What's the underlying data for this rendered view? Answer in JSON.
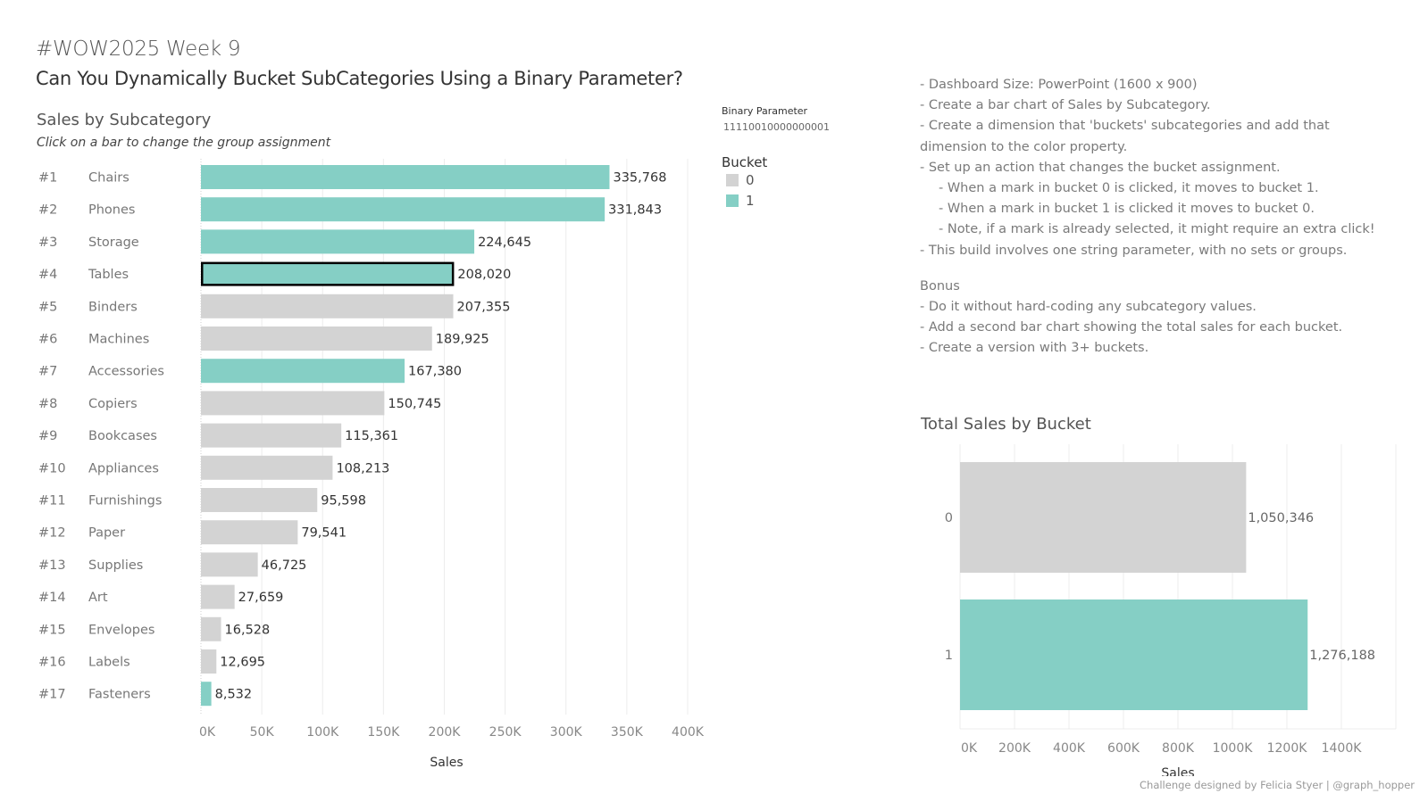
{
  "header": {
    "line1": "#WOW2025 Week 9",
    "title": "Can You Dynamically Bucket SubCategories Using a Binary Parameter?"
  },
  "parameter": {
    "label": "Binary Parameter",
    "value": "11110010000000001"
  },
  "legend": {
    "title": "Bucket",
    "items": [
      {
        "label": "0",
        "color": "#d3d3d3"
      },
      {
        "label": "1",
        "color": "#85cfc5"
      }
    ]
  },
  "notes": {
    "lines": [
      "- Dashboard Size: PowerPoint (1600 x 900)",
      "- Create a bar chart of Sales by Subcategory.",
      "- Create a dimension that 'buckets' subcategories and add that",
      "dimension to the color property.",
      "- Set up an action that changes the bucket assignment.",
      "- When a mark in bucket 0 is clicked, it moves to bucket 1.",
      "- When a mark in bucket 1 is clicked it moves to bucket 0.",
      "- Note, if a mark is already selected, it might require an extra click!",
      "- This build involves one string parameter, with no sets or groups."
    ],
    "bonus_title": "Bonus",
    "bonus_lines": [
      "- Do it without hard-coding any subcategory values.",
      "- Add a second bar chart showing the total sales for each bucket.",
      "- Create a version with 3+ buckets."
    ]
  },
  "footer": "Challenge designed by Felicia Styer | @graph_hopper",
  "colors": {
    "bucket0": "#d3d3d3",
    "bucket1": "#85cfc5",
    "grid": "#ececec",
    "selected_border": "#000000"
  },
  "chart_data": [
    {
      "type": "bar",
      "orientation": "horizontal",
      "title": "Sales by Subcategory",
      "subtitle": "Click on a bar to change the group assignment",
      "xlabel": "Sales",
      "ylabel": "",
      "xlim": [
        0,
        400000
      ],
      "x_ticks": [
        "0K",
        "50K",
        "100K",
        "150K",
        "200K",
        "250K",
        "300K",
        "350K",
        "400K"
      ],
      "grid": true,
      "ranks": [
        "#1",
        "#2",
        "#3",
        "#4",
        "#5",
        "#6",
        "#7",
        "#8",
        "#9",
        "#10",
        "#11",
        "#12",
        "#13",
        "#14",
        "#15",
        "#16",
        "#17"
      ],
      "categories": [
        "Chairs",
        "Phones",
        "Storage",
        "Tables",
        "Binders",
        "Machines",
        "Accessories",
        "Copiers",
        "Bookcases",
        "Appliances",
        "Furnishings",
        "Paper",
        "Supplies",
        "Art",
        "Envelopes",
        "Labels",
        "Fasteners"
      ],
      "values": [
        335768,
        331843,
        224645,
        208020,
        207355,
        189925,
        167380,
        150745,
        115361,
        108213,
        95598,
        79541,
        46725,
        27659,
        16528,
        12695,
        8532
      ],
      "value_labels": [
        "335,768",
        "331,843",
        "224,645",
        "208,020",
        "207,355",
        "189,925",
        "167,380",
        "150,745",
        "115,361",
        "108,213",
        "95,598",
        "79,541",
        "46,725",
        "27,659",
        "16,528",
        "12,695",
        "8,532"
      ],
      "bucket": [
        1,
        1,
        1,
        1,
        0,
        0,
        1,
        0,
        0,
        0,
        0,
        0,
        0,
        0,
        0,
        0,
        1
      ],
      "selected": "Tables"
    },
    {
      "type": "bar",
      "orientation": "horizontal",
      "title": "Total Sales by Bucket",
      "xlabel": "Sales",
      "ylabel": "",
      "xlim": [
        0,
        1600000
      ],
      "x_ticks": [
        "0K",
        "200K",
        "400K",
        "600K",
        "800K",
        "1000K",
        "1200K",
        "1400K"
      ],
      "grid": true,
      "categories": [
        "0",
        "1"
      ],
      "values": [
        1050346,
        1276188
      ],
      "value_labels": [
        "1,050,346",
        "1,276,188"
      ]
    }
  ]
}
